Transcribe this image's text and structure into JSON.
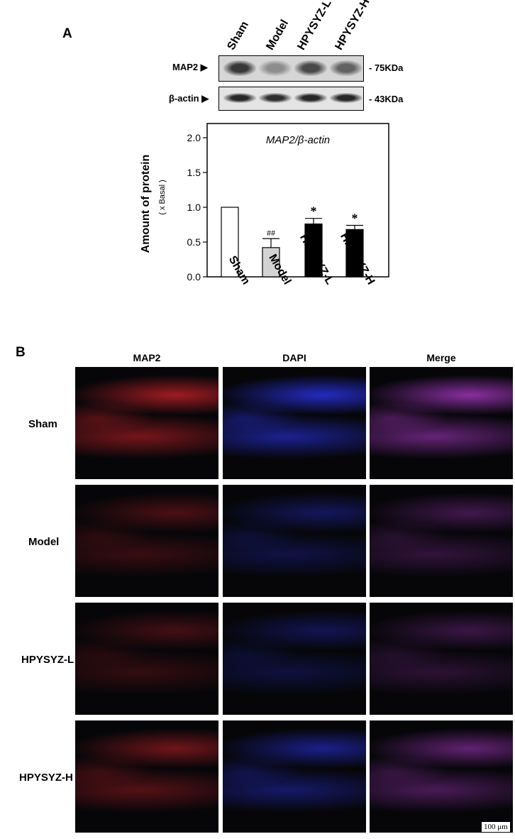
{
  "panel_a": {
    "letter": "A",
    "lanes": [
      "Sham",
      "Model",
      "HPYSYZ-L",
      "HPYSYZ-H"
    ],
    "blots": [
      {
        "label": "MAP2 ▶",
        "size": "- 75KDa",
        "intensities": [
          0.85,
          0.35,
          0.75,
          0.6
        ]
      },
      {
        "label": "β-actin ▶",
        "size": "- 43KDa",
        "intensities": [
          0.95,
          0.9,
          0.95,
          0.95
        ]
      }
    ]
  },
  "chart_data": {
    "type": "bar",
    "title": "MAP2/β-actin",
    "ylabel": "Amount of protein",
    "ylabel_sub": "( x Basal )",
    "categories": [
      "Sham",
      "Model",
      "HPYSYZ-L",
      "HPYSYZ-H"
    ],
    "values": [
      1.0,
      0.42,
      0.76,
      0.68
    ],
    "errors": [
      0,
      0.13,
      0.08,
      0.06
    ],
    "annotations": [
      "",
      "##",
      "*",
      "*"
    ],
    "bar_colors": [
      "#ffffff",
      "#d3d3d3",
      "#000000",
      "#000000"
    ],
    "ylim": [
      0,
      2.0
    ],
    "yticks": [
      "0.0",
      "0.5",
      "1.0",
      "1.5",
      "2.0"
    ],
    "ytick_values": [
      0,
      0.5,
      1.0,
      1.5,
      2.0
    ]
  },
  "panel_b": {
    "letter": "B",
    "columns": [
      "MAP2",
      "DAPI",
      "Merge"
    ],
    "rows": [
      "Sham",
      "Model",
      "HPYSYZ-L",
      "HPYSYZ-H"
    ],
    "row_brightness": [
      1.0,
      0.45,
      0.4,
      0.7
    ],
    "channel_colors": [
      "#d2232a",
      "#2e37ff",
      "#b43cd2"
    ],
    "scale_bar": "100 μm"
  }
}
